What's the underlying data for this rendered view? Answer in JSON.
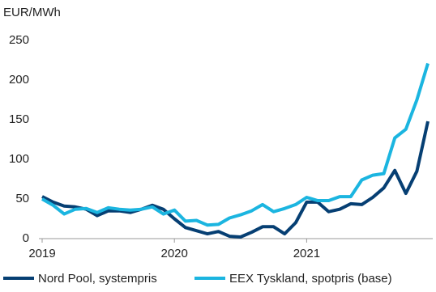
{
  "chart_data": {
    "type": "line",
    "title": "EUR/MWh",
    "categories": [
      "2019",
      null,
      null,
      null,
      null,
      null,
      null,
      null,
      null,
      null,
      null,
      null,
      "2020",
      null,
      null,
      null,
      null,
      null,
      null,
      null,
      null,
      null,
      null,
      null,
      "2021",
      null,
      null,
      null,
      null,
      null,
      null,
      null,
      null,
      null,
      null,
      null
    ],
    "series": [
      {
        "name": "Nord Pool, systempris",
        "color": "#063f73",
        "values": [
          53,
          46,
          41,
          40,
          37,
          29,
          35,
          35,
          33,
          37,
          42,
          37,
          25,
          14,
          10,
          6,
          9,
          3,
          2,
          8,
          15,
          15,
          6,
          20,
          46,
          46,
          34,
          37,
          44,
          43,
          52,
          64,
          86,
          57,
          85,
          148
        ]
      },
      {
        "name": "EEX Tyskland, spotpris (base)",
        "color": "#1bb5e0",
        "values": [
          50,
          42,
          31,
          37,
          38,
          33,
          39,
          37,
          36,
          37,
          40,
          31,
          36,
          22,
          23,
          17,
          18,
          26,
          30,
          35,
          43,
          34,
          38,
          43,
          52,
          48,
          48,
          53,
          53,
          74,
          80,
          82,
          127,
          138,
          175,
          221
        ]
      }
    ],
    "ylim": [
      0,
      250
    ],
    "yticks": [
      0,
      50,
      100,
      150,
      200,
      250
    ],
    "grid": false,
    "legend": "bottom"
  }
}
